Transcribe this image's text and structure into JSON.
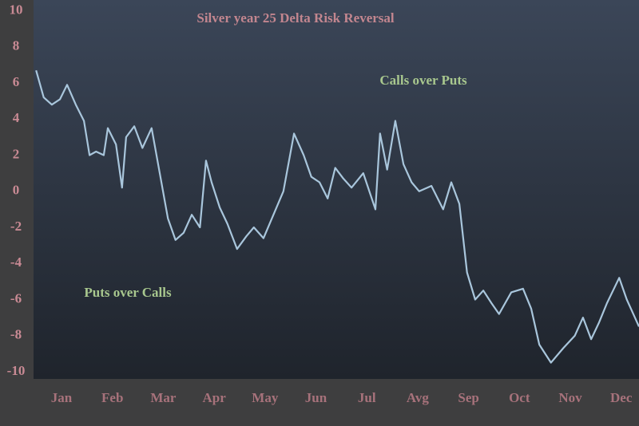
{
  "chart_data": {
    "type": "line",
    "title": "Silver year  25 Delta Risk Reversal",
    "annotations": [
      "Calls over Puts",
      "Puts over Calls"
    ],
    "x": [
      0.0,
      0.15,
      0.31,
      0.47,
      0.61,
      0.78,
      0.94,
      1.05,
      1.18,
      1.33,
      1.41,
      1.57,
      1.69,
      1.77,
      1.93,
      2.09,
      2.27,
      2.43,
      2.59,
      2.74,
      2.9,
      3.06,
      3.22,
      3.34,
      3.45,
      3.61,
      3.76,
      3.95,
      4.13,
      4.28,
      4.47,
      4.71,
      4.86,
      5.07,
      5.26,
      5.41,
      5.57,
      5.73,
      5.88,
      6.04,
      6.2,
      6.43,
      6.67,
      6.76,
      6.9,
      7.06,
      7.22,
      7.38,
      7.53,
      7.77,
      8.0,
      8.16,
      8.32,
      8.47,
      8.63,
      8.79,
      8.95,
      9.1,
      9.34,
      9.57,
      9.73,
      9.89,
      10.12,
      10.36,
      10.59,
      10.75,
      10.91,
      11.06,
      11.22,
      11.46,
      11.61,
      11.77,
      11.85
    ],
    "series": [
      {
        "color": "#a9c6dc",
        "values": [
          6.7,
          5.2,
          4.8,
          5.1,
          5.9,
          4.8,
          3.9,
          2.0,
          2.2,
          2.0,
          3.5,
          2.6,
          0.2,
          3.0,
          3.6,
          2.4,
          3.5,
          1.0,
          -1.5,
          -2.7,
          -2.3,
          -1.3,
          -2.0,
          1.7,
          0.5,
          -0.9,
          -1.8,
          -3.2,
          -2.5,
          -2.0,
          -2.6,
          -1.0,
          0.0,
          3.2,
          2.0,
          0.8,
          0.5,
          -0.4,
          1.3,
          0.7,
          0.2,
          1.0,
          -1.0,
          3.2,
          1.2,
          3.9,
          1.5,
          0.5,
          0.0,
          0.3,
          -1.0,
          0.5,
          -0.7,
          -4.5,
          -6.0,
          -5.5,
          -6.2,
          -6.8,
          -5.6,
          -5.4,
          -6.5,
          -8.5,
          -9.5,
          -8.7,
          -8.0,
          -7.0,
          -8.2,
          -7.3,
          -6.2,
          -4.8,
          -6.0,
          -7.0,
          -7.5
        ]
      }
    ],
    "xlim": [
      -0.05,
      11.85
    ],
    "xticks": [
      {
        "value": 0.5,
        "label": "Jan"
      },
      {
        "value": 1.5,
        "label": "Feb"
      },
      {
        "value": 2.5,
        "label": "Mar"
      },
      {
        "value": 3.5,
        "label": "Apr"
      },
      {
        "value": 4.5,
        "label": "May"
      },
      {
        "value": 5.5,
        "label": "Jun"
      },
      {
        "value": 6.5,
        "label": "Jul"
      },
      {
        "value": 7.5,
        "label": "Avg"
      },
      {
        "value": 8.5,
        "label": "Sep"
      },
      {
        "value": 9.5,
        "label": "Oct"
      },
      {
        "value": 10.5,
        "label": "Nov"
      },
      {
        "value": 11.5,
        "label": "Dec"
      }
    ],
    "ylim": [
      -10.4,
      10.6
    ],
    "yticks": [
      10,
      8,
      6,
      4,
      2,
      0,
      -2,
      -4,
      -6,
      -8,
      -10
    ]
  }
}
